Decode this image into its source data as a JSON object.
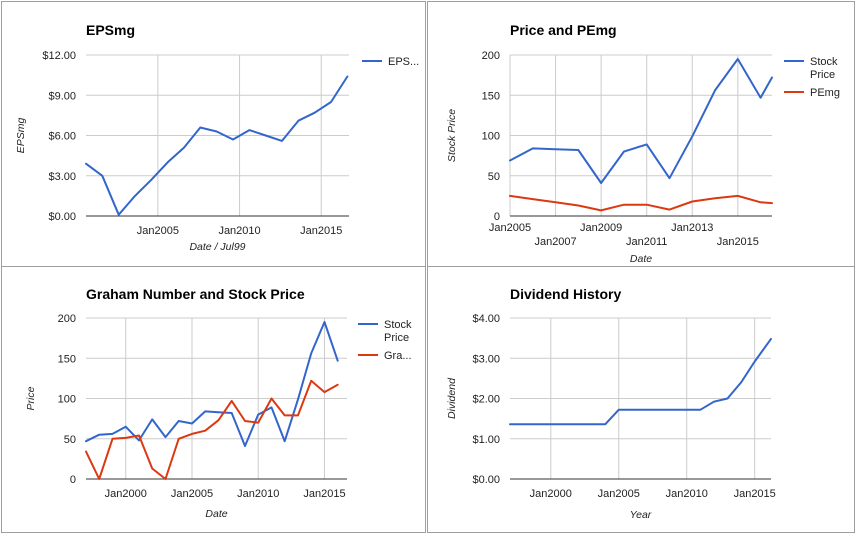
{
  "chart_data": [
    {
      "type": "line",
      "title": "EPSmg",
      "xlabel": "Date / Jul99",
      "ylabel": "EPSmg",
      "x_range": [
        2000.6,
        2016.7
      ],
      "ylim": [
        0,
        12
      ],
      "yticks": [
        0,
        3,
        6,
        9,
        12
      ],
      "ytick_labels": [
        "$0.00",
        "$3.00",
        "$6.00",
        "$9.00",
        "$12.00"
      ],
      "xticks": [
        2000,
        2005,
        2010,
        2015
      ],
      "xtick_labels": [
        "",
        "Jan2005",
        "Jan2010",
        "Jan2015"
      ],
      "legend_position": "right",
      "series": [
        {
          "name": "EPS...",
          "color": "#3366cc",
          "x": [
            2000.6,
            2001.6,
            2002.6,
            2003.6,
            2004.6,
            2005.6,
            2006.6,
            2007.6,
            2008.6,
            2009.6,
            2010.6,
            2011.6,
            2012.6,
            2013.6,
            2014.6,
            2015.6,
            2016.6
          ],
          "values": [
            3.9,
            3.0,
            0.1,
            1.5,
            2.7,
            4.0,
            5.1,
            6.6,
            6.3,
            5.7,
            6.4,
            6.0,
            5.6,
            7.1,
            7.7,
            8.5,
            10.4
          ]
        }
      ]
    },
    {
      "type": "line",
      "title": "Price and PEmg",
      "xlabel": "Date",
      "ylabel": "Stock Price",
      "x_range": [
        2005.0,
        2016.5
      ],
      "ylim": [
        0,
        200
      ],
      "yticks": [
        0,
        50,
        100,
        150,
        200
      ],
      "ytick_labels": [
        "0",
        "50",
        "100",
        "150",
        "200"
      ],
      "xticks": [
        2005,
        2007,
        2009,
        2011,
        2013,
        2015
      ],
      "xtick_labels": [
        "Jan2005",
        "Jan2007",
        "Jan2009",
        "Jan2011",
        "Jan2013",
        "Jan2015"
      ],
      "legend_position": "right",
      "series": [
        {
          "name": "Stock Price",
          "color": "#3366cc",
          "x": [
            2005.0,
            2006.0,
            2007.0,
            2008.0,
            2009.0,
            2010.0,
            2011.0,
            2012.0,
            2013.0,
            2014.0,
            2015.0,
            2016.0,
            2016.5
          ],
          "values": [
            69,
            84,
            83,
            82,
            41,
            80,
            89,
            47,
            99,
            156,
            195,
            147,
            172
          ]
        },
        {
          "name": "PEmg",
          "color": "#dc3912",
          "x": [
            2005.0,
            2006.0,
            2007.0,
            2008.0,
            2009.0,
            2010.0,
            2011.0,
            2012.0,
            2013.0,
            2014.0,
            2015.0,
            2016.0,
            2016.5
          ],
          "values": [
            25,
            21,
            17,
            13,
            7,
            14,
            14,
            8,
            18,
            22,
            25,
            17,
            16
          ]
        }
      ]
    },
    {
      "type": "line",
      "title": "Graham Number and Stock Price",
      "xlabel": "Date",
      "ylabel": "Price",
      "x_range": [
        1997.0,
        2016.7
      ],
      "ylim": [
        0,
        200
      ],
      "yticks": [
        0,
        50,
        100,
        150,
        200
      ],
      "ytick_labels": [
        "0",
        "50",
        "100",
        "150",
        "200"
      ],
      "xticks": [
        2000,
        2005,
        2010,
        2015
      ],
      "xtick_labels": [
        "Jan2000",
        "Jan2005",
        "Jan2010",
        "Jan2015"
      ],
      "legend_position": "right",
      "series": [
        {
          "name": "Stock Price",
          "color": "#3366cc",
          "x": [
            1997.0,
            1998.0,
            1999.0,
            2000.0,
            2001.0,
            2002.0,
            2003.0,
            2004.0,
            2005.0,
            2006.0,
            2007.0,
            2008.0,
            2009.0,
            2010.0,
            2011.0,
            2012.0,
            2013.0,
            2014.0,
            2015.0,
            2016.0
          ],
          "values": [
            47,
            55,
            56,
            65,
            48,
            74,
            52,
            72,
            69,
            84,
            83,
            82,
            41,
            80,
            89,
            47,
            99,
            156,
            195,
            147
          ]
        },
        {
          "name": "Gra...",
          "color": "#dc3912",
          "x": [
            1997.0,
            1998.0,
            1999.0,
            2000.0,
            2001.0,
            2002.0,
            2003.0,
            2004.0,
            2005.0,
            2006.0,
            2007.0,
            2008.0,
            2009.0,
            2010.0,
            2011.0,
            2012.0,
            2013.0,
            2014.0,
            2015.0,
            2016.0
          ],
          "values": [
            34,
            0,
            50,
            51,
            54,
            13,
            0,
            50,
            56,
            60,
            73,
            97,
            72,
            70,
            100,
            79,
            79,
            122,
            108,
            117
          ]
        }
      ]
    },
    {
      "type": "line",
      "title": "Dividend History",
      "xlabel": "Year",
      "ylabel": "Dividend",
      "x_range": [
        1997.0,
        2016.2
      ],
      "ylim": [
        0,
        4
      ],
      "yticks": [
        0,
        1,
        2,
        3,
        4
      ],
      "ytick_labels": [
        "$0.00",
        "$1.00",
        "$2.00",
        "$3.00",
        "$4.00"
      ],
      "xticks": [
        2000,
        2005,
        2010,
        2015
      ],
      "xtick_labels": [
        "Jan2000",
        "Jan2005",
        "Jan2010",
        "Jan2015"
      ],
      "legend_position": "none",
      "series": [
        {
          "name": "",
          "color": "#3366cc",
          "x": [
            1997.0,
            1998.0,
            1999.0,
            2000.0,
            2001.0,
            2002.0,
            2003.0,
            2004.0,
            2005.0,
            2006.0,
            2007.0,
            2008.0,
            2009.0,
            2010.0,
            2011.0,
            2012.0,
            2013.0,
            2014.0,
            2015.0,
            2016.2
          ],
          "values": [
            1.36,
            1.36,
            1.36,
            1.36,
            1.36,
            1.36,
            1.36,
            1.36,
            1.72,
            1.72,
            1.72,
            1.72,
            1.72,
            1.72,
            1.72,
            1.92,
            2.0,
            2.4,
            2.92,
            3.48
          ]
        }
      ]
    }
  ]
}
